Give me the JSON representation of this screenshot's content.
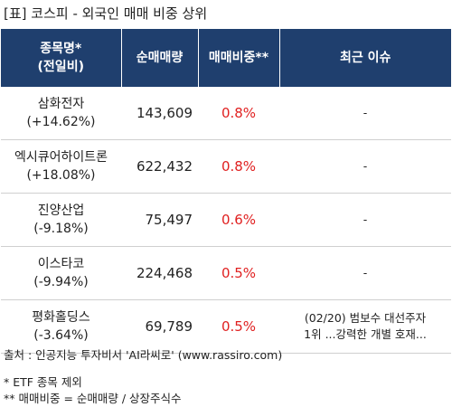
{
  "title": "[표] 코스피 - 외국인 매매 비중 상위",
  "headers": {
    "name_line1": "종목명*",
    "name_line2": "(전일비)",
    "volume": "순매매량",
    "ratio": "매매비중**",
    "issue": "최근 이슈"
  },
  "rows": [
    {
      "name": "삼화전자",
      "change": "(+14.62%)",
      "volume": "143,609",
      "ratio": "0.8%",
      "issue_line1": "-",
      "issue_line2": ""
    },
    {
      "name": "엑시큐어하이트론",
      "change": "(+18.08%)",
      "volume": "622,432",
      "ratio": "0.8%",
      "issue_line1": "-",
      "issue_line2": ""
    },
    {
      "name": "진양산업",
      "change": "(-9.18%)",
      "volume": "75,497",
      "ratio": "0.6%",
      "issue_line1": "-",
      "issue_line2": ""
    },
    {
      "name": "이스타코",
      "change": "(-9.94%)",
      "volume": "224,468",
      "ratio": "0.5%",
      "issue_line1": "-",
      "issue_line2": ""
    },
    {
      "name": "평화홀딩스",
      "change": "(-3.64%)",
      "volume": "69,789",
      "ratio": "0.5%",
      "issue_line1": "(02/20) 범보수 대선주자",
      "issue_line2": "1위 ...강력한 개별 호재..."
    }
  ],
  "source": "출처 : 인공지능 투자비서 'AI라씨로' (www.rassiro.com)",
  "note1": "* ETF 종목 제외",
  "note2": "** 매매비중 = 순매매량 / 상장주식수",
  "colors": {
    "header_bg": "#1f3f6e",
    "ratio_text": "#e02020"
  }
}
